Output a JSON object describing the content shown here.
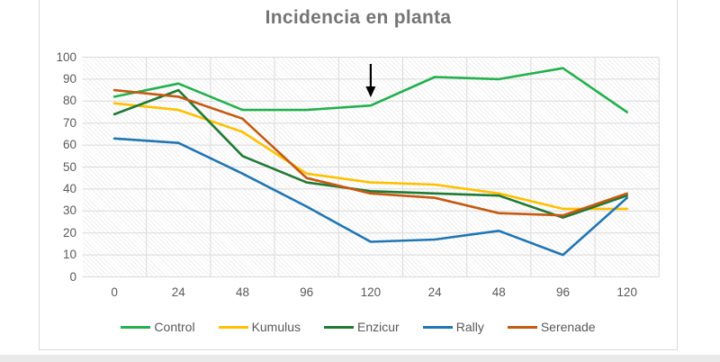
{
  "chart": {
    "title": "Incidencia en planta",
    "title_color": "#757575",
    "axis_text_color": "#595959",
    "gridline_color": "#dadada",
    "frame_border_color": "#d9d9d9",
    "annotation_arrow_color": "#000000"
  },
  "chart_data": {
    "type": "line",
    "title": "Incidencia en planta",
    "categories": [
      "0",
      "24",
      "48",
      "96",
      "120",
      "24",
      "48",
      "96",
      "120"
    ],
    "xlabel": "",
    "ylabel": "",
    "ylim": [
      0,
      100
    ],
    "y_ticks": [
      100,
      90,
      80,
      70,
      60,
      50,
      40,
      30,
      20,
      10,
      0
    ],
    "grid": true,
    "legend_position": "bottom",
    "series": [
      {
        "name": "Control",
        "color": "#22b14c",
        "values": [
          82,
          88,
          76,
          76,
          78,
          91,
          90,
          95,
          75
        ]
      },
      {
        "name": "Kumulus",
        "color": "#ffc000",
        "values": [
          79,
          76,
          66,
          47,
          43,
          42,
          38,
          31,
          31
        ]
      },
      {
        "name": "Enzicur",
        "color": "#1f7a33",
        "values": [
          74,
          85,
          55,
          43,
          39,
          38,
          37,
          27,
          37
        ]
      },
      {
        "name": "Rally",
        "color": "#2076b4",
        "values": [
          63,
          61,
          47,
          32,
          16,
          17,
          21,
          10,
          36
        ]
      },
      {
        "name": "Serenade",
        "color": "#c55a11",
        "values": [
          85,
          82,
          72,
          45,
          38,
          36,
          29,
          28,
          38
        ]
      }
    ],
    "annotation": {
      "type": "arrow-down",
      "category_index": 4,
      "category_label": "120",
      "points_to_series": "Control"
    }
  }
}
